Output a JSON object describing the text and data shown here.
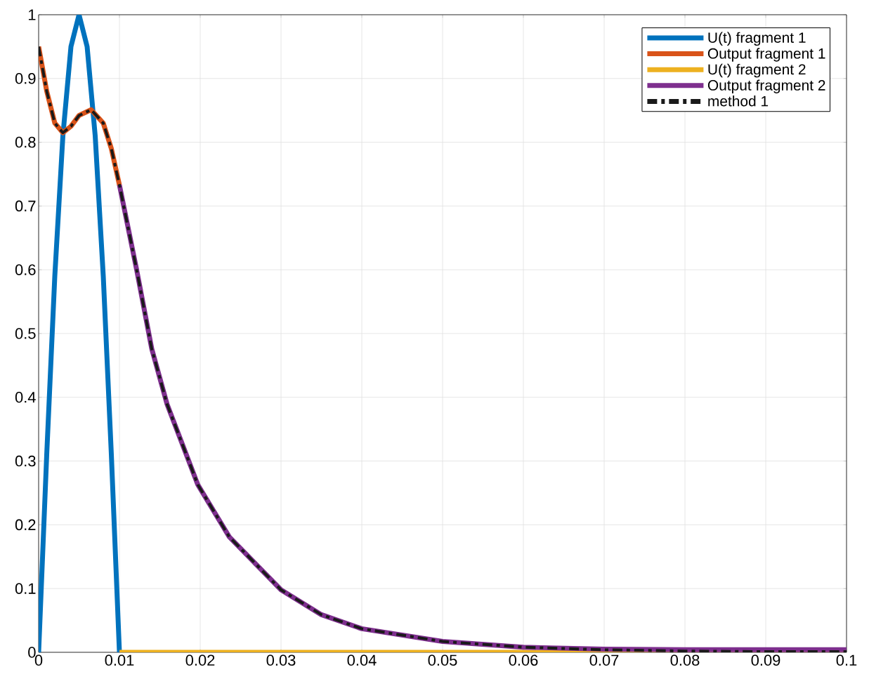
{
  "chart_data": {
    "type": "line",
    "xlim": [
      0,
      0.1
    ],
    "ylim": [
      0,
      1
    ],
    "xticks": [
      0,
      0.01,
      0.02,
      0.03,
      0.04,
      0.05,
      0.06,
      0.07,
      0.08,
      0.09,
      0.1
    ],
    "yticks": [
      0,
      0.1,
      0.2,
      0.3,
      0.4,
      0.5,
      0.6,
      0.7,
      0.8,
      0.9,
      1
    ],
    "grid": true,
    "legend": "top right",
    "series": [
      {
        "name": "U(t) fragment 1",
        "color": "#0072bd",
        "line_style": "solid",
        "x": [
          0,
          0.001,
          0.002,
          0.003,
          0.004,
          0.005,
          0.006,
          0.007,
          0.008,
          0.009,
          0.01
        ],
        "values": [
          0,
          0.31,
          0.59,
          0.81,
          0.95,
          1,
          0.95,
          0.81,
          0.59,
          0.31,
          0
        ]
      },
      {
        "name": "Output fragment 1",
        "color": "#d95319",
        "line_style": "solid",
        "x": [
          0,
          0.001,
          0.002,
          0.003,
          0.004,
          0.005,
          0.0065,
          0.008,
          0.009,
          0.01
        ],
        "values": [
          0.95,
          0.88,
          0.83,
          0.815,
          0.825,
          0.842,
          0.851,
          0.83,
          0.79,
          0.733
        ]
      },
      {
        "name": "U(t) fragment 2",
        "color": "#edb120",
        "line_style": "solid",
        "x": [
          0.01,
          0.1
        ],
        "values": [
          0,
          0
        ]
      },
      {
        "name": "Output fragment 2",
        "color": "#7e2f8e",
        "line_style": "solid",
        "x": [
          0.01,
          0.0121,
          0.014,
          0.0159,
          0.0197,
          0.0236,
          0.03,
          0.035,
          0.04,
          0.05,
          0.06,
          0.07,
          0.08,
          0.09,
          0.1
        ],
        "values": [
          0.733,
          0.602,
          0.476,
          0.389,
          0.263,
          0.181,
          0.098,
          0.059,
          0.037,
          0.017,
          0.008,
          0.005,
          0.004,
          0.004,
          0.004
        ]
      },
      {
        "name": "method 1",
        "color": "#1a1a1a",
        "line_style": "dashed",
        "x": [
          0,
          0.001,
          0.002,
          0.003,
          0.004,
          0.005,
          0.0065,
          0.008,
          0.009,
          0.01,
          0.0121,
          0.014,
          0.0159,
          0.0197,
          0.0236,
          0.03,
          0.035,
          0.04,
          0.05,
          0.06,
          0.07,
          0.08,
          0.09,
          0.1
        ],
        "values": [
          0.95,
          0.88,
          0.83,
          0.815,
          0.825,
          0.842,
          0.851,
          0.83,
          0.79,
          0.733,
          0.602,
          0.476,
          0.389,
          0.263,
          0.181,
          0.098,
          0.059,
          0.037,
          0.017,
          0.008,
          0.004,
          0.002,
          0.001,
          0.001
        ]
      }
    ]
  }
}
